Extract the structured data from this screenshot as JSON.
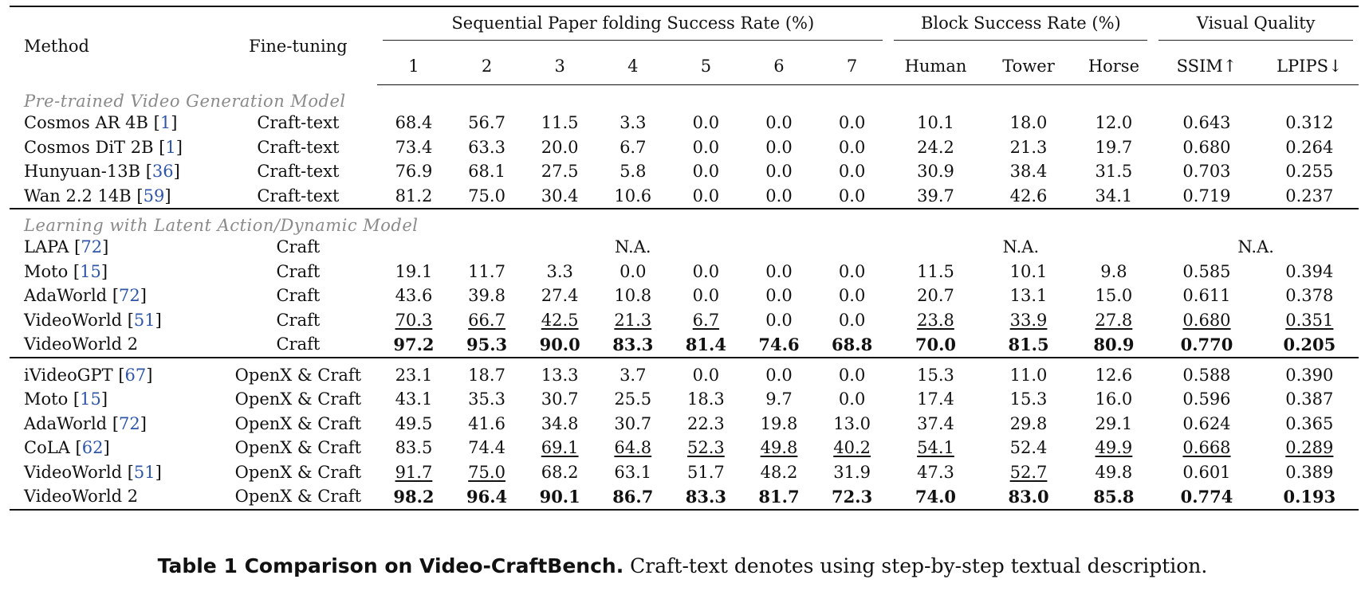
{
  "header": {
    "method": "Method",
    "finetuning": "Fine-tuning",
    "group_paper": "Sequential Paper folding Success Rate (%)",
    "group_block": "Block Success Rate (%)",
    "group_visual": "Visual Quality",
    "sub": [
      "1",
      "2",
      "3",
      "4",
      "5",
      "6",
      "7",
      "Human",
      "Tower",
      "Horse",
      "SSIM↑",
      "LPIPS↓"
    ]
  },
  "sections": [
    {
      "title": "Pre-trained Video Generation Model",
      "rows": [
        {
          "method": "Cosmos AR 4B",
          "ref": "1",
          "ft": "Craft-text",
          "cells": [
            "68.4",
            "56.7",
            "11.5",
            "3.3",
            "0.0",
            "0.0",
            "0.0",
            "10.1",
            "18.0",
            "12.0",
            "0.643",
            "0.312"
          ],
          "bold": false,
          "underline": []
        },
        {
          "method": "Cosmos DiT 2B",
          "ref": "1",
          "ft": "Craft-text",
          "cells": [
            "73.4",
            "63.3",
            "20.0",
            "6.7",
            "0.0",
            "0.0",
            "0.0",
            "24.2",
            "21.3",
            "19.7",
            "0.680",
            "0.264"
          ],
          "bold": false,
          "underline": []
        },
        {
          "method": "Hunyuan-13B",
          "ref": "36",
          "ft": "Craft-text",
          "cells": [
            "76.9",
            "68.1",
            "27.5",
            "5.8",
            "0.0",
            "0.0",
            "0.0",
            "30.9",
            "38.4",
            "31.5",
            "0.703",
            "0.255"
          ],
          "bold": false,
          "underline": []
        },
        {
          "method": "Wan 2.2 14B",
          "ref": "59",
          "ft": "Craft-text",
          "cells": [
            "81.2",
            "75.0",
            "30.4",
            "10.6",
            "0.0",
            "0.0",
            "0.0",
            "39.7",
            "42.6",
            "34.1",
            "0.719",
            "0.237"
          ],
          "bold": false,
          "underline": []
        }
      ]
    },
    {
      "title": "Learning with Latent Action/Dynamic Model",
      "rows": [
        {
          "method": "LAPA",
          "ref": "72",
          "ft": "Craft",
          "na": true,
          "na_text": "N.A."
        },
        {
          "method": "Moto",
          "ref": "15",
          "ft": "Craft",
          "cells": [
            "19.1",
            "11.7",
            "3.3",
            "0.0",
            "0.0",
            "0.0",
            "0.0",
            "11.5",
            "10.1",
            "9.8",
            "0.585",
            "0.394"
          ],
          "bold": false,
          "underline": []
        },
        {
          "method": "AdaWorld",
          "ref": "72",
          "ft": "Craft",
          "cells": [
            "43.6",
            "39.8",
            "27.4",
            "10.8",
            "0.0",
            "0.0",
            "0.0",
            "20.7",
            "13.1",
            "15.0",
            "0.611",
            "0.378"
          ],
          "bold": false,
          "underline": []
        },
        {
          "method": "VideoWorld",
          "ref": "51",
          "ft": "Craft",
          "cells": [
            "70.3",
            "66.7",
            "42.5",
            "21.3",
            "6.7",
            "0.0",
            "0.0",
            "23.8",
            "33.9",
            "27.8",
            "0.680",
            "0.351"
          ],
          "bold": false,
          "underline": [
            0,
            1,
            2,
            3,
            4,
            7,
            8,
            9,
            10,
            11
          ]
        },
        {
          "method": "VideoWorld 2",
          "ref": "",
          "ft": "Craft",
          "cells": [
            "97.2",
            "95.3",
            "90.0",
            "83.3",
            "81.4",
            "74.6",
            "68.8",
            "70.0",
            "81.5",
            "80.9",
            "0.770",
            "0.205"
          ],
          "bold": true,
          "underline": []
        }
      ]
    },
    {
      "title": "",
      "rows": [
        {
          "method": "iVideoGPT",
          "ref": "67",
          "ft": "OpenX & Craft",
          "cells": [
            "23.1",
            "18.7",
            "13.3",
            "3.7",
            "0.0",
            "0.0",
            "0.0",
            "15.3",
            "11.0",
            "12.6",
            "0.588",
            "0.390"
          ],
          "bold": false,
          "underline": []
        },
        {
          "method": "Moto",
          "ref": "15",
          "ft": "OpenX & Craft",
          "cells": [
            "43.1",
            "35.3",
            "30.7",
            "25.5",
            "18.3",
            "9.7",
            "0.0",
            "17.4",
            "15.3",
            "16.0",
            "0.596",
            "0.387"
          ],
          "bold": false,
          "underline": []
        },
        {
          "method": "AdaWorld",
          "ref": "72",
          "ft": "OpenX & Craft",
          "cells": [
            "49.5",
            "41.6",
            "34.8",
            "30.7",
            "22.3",
            "19.8",
            "13.0",
            "37.4",
            "29.8",
            "29.1",
            "0.624",
            "0.365"
          ],
          "bold": false,
          "underline": []
        },
        {
          "method": "CoLA",
          "ref": "62",
          "ft": "OpenX & Craft",
          "cells": [
            "83.5",
            "74.4",
            "69.1",
            "64.8",
            "52.3",
            "49.8",
            "40.2",
            "54.1",
            "52.4",
            "49.9",
            "0.668",
            "0.289"
          ],
          "bold": false,
          "underline": [
            2,
            3,
            4,
            5,
            6,
            7,
            9,
            10,
            11
          ]
        },
        {
          "method": "VideoWorld",
          "ref": "51",
          "ft": "OpenX & Craft",
          "cells": [
            "91.7",
            "75.0",
            "68.2",
            "63.1",
            "51.7",
            "48.2",
            "31.9",
            "47.3",
            "52.7",
            "49.8",
            "0.601",
            "0.389"
          ],
          "bold": false,
          "underline": [
            0,
            1,
            8
          ]
        },
        {
          "method": "VideoWorld 2",
          "ref": "",
          "ft": "OpenX & Craft",
          "cells": [
            "98.2",
            "96.4",
            "90.1",
            "86.7",
            "83.3",
            "81.7",
            "72.3",
            "74.0",
            "83.0",
            "85.8",
            "0.774",
            "0.193"
          ],
          "bold": true,
          "underline": []
        }
      ]
    }
  ],
  "caption": {
    "label": "Table 1  Comparison on Video-CraftBench.",
    "text": " Craft-text denotes using step-by-step textual description."
  }
}
